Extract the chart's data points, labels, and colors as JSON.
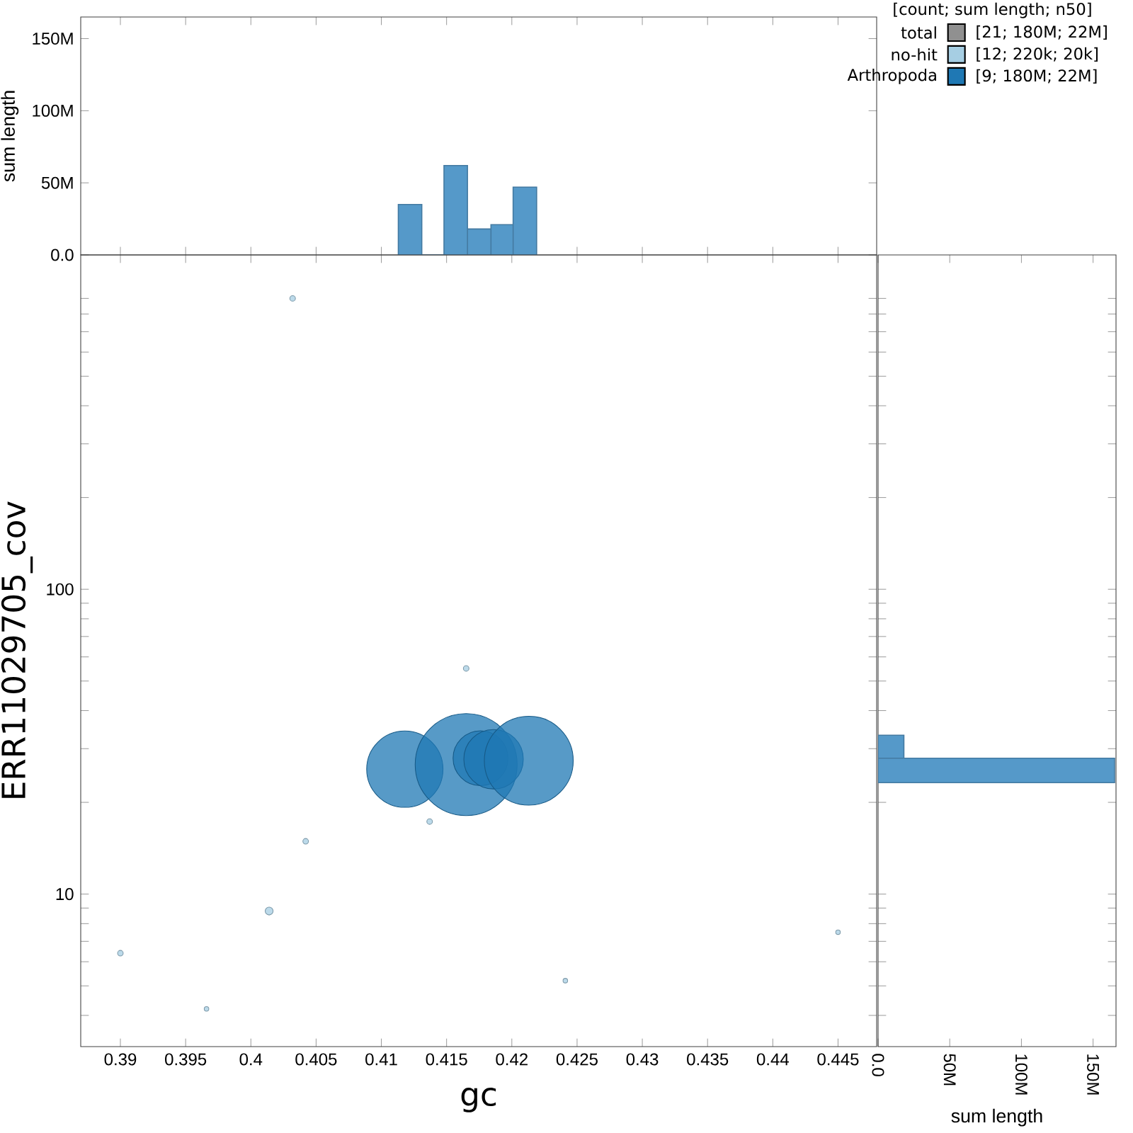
{
  "chart_data": [
    {
      "type": "histogram",
      "bins": [
        0.4113,
        0.4131,
        0.4148,
        0.4166,
        0.4184,
        0.4201,
        0.4219
      ],
      "values": [
        35000000,
        0,
        62000000,
        18000000,
        21000000,
        47000000
      ],
      "color": "#5599c9",
      "ylabel": "sum length",
      "xlim": [
        0.38696,
        0.44796
      ],
      "ylim": [
        0,
        165000000
      ],
      "xticks": [
        0.39,
        0.395,
        0.4,
        0.405,
        0.41,
        0.415,
        0.42,
        0.425,
        0.43,
        0.435,
        0.44,
        0.445
      ],
      "yticks": [
        {
          "value": 0,
          "label": "0.0"
        },
        {
          "value": 50000000,
          "label": "50M"
        },
        {
          "value": 100000000,
          "label": "100M"
        },
        {
          "value": 150000000,
          "label": "150M"
        }
      ],
      "tick_labels": "y"
    },
    {
      "type": "other",
      "legend_title": "[count; sum length; n50]",
      "categories": [
        "total",
        "no-hit",
        "Arthropoda"
      ],
      "colors": [
        "#909090",
        "#a6cee3",
        "#1f78b4"
      ],
      "value_labels": [
        "[21; 180M; 22M]",
        "[12; 220k; 20k]",
        "[9; 180M; 22M]"
      ]
    },
    {
      "type": "bubble",
      "xlabel": "gc",
      "ylabel": "ERR11029705_cov",
      "log": "y",
      "xlim": [
        0.38696,
        0.44796
      ],
      "ylim": [
        3.16,
        1250
      ],
      "xticks": [
        0.39,
        0.395,
        0.4,
        0.405,
        0.41,
        0.415,
        0.42,
        0.425,
        0.43,
        0.435,
        0.44,
        0.445
      ],
      "yticks": [
        {
          "value": 4,
          "label": null
        },
        {
          "value": 5,
          "label": null
        },
        {
          "value": 6,
          "label": null
        },
        {
          "value": 7,
          "label": null
        },
        {
          "value": 8,
          "label": null
        },
        {
          "value": 9,
          "label": null
        },
        10,
        {
          "value": 20,
          "label": null
        },
        {
          "value": 30,
          "label": null
        },
        {
          "value": 40,
          "label": null
        },
        {
          "value": 50,
          "label": null
        },
        {
          "value": 60,
          "label": null
        },
        {
          "value": 70,
          "label": null
        },
        {
          "value": 80,
          "label": null
        },
        {
          "value": 90,
          "label": null
        },
        100,
        {
          "value": 200,
          "label": null
        },
        {
          "value": 300,
          "label": null
        },
        {
          "value": 400,
          "label": null
        },
        {
          "value": 500,
          "label": null
        },
        {
          "value": 600,
          "label": null
        },
        {
          "value": 700,
          "label": null
        },
        {
          "value": 800,
          "label": null
        },
        {
          "value": 900,
          "label": null
        }
      ],
      "series": [
        {
          "color": "#a6cee3",
          "x": [
            0.39,
            0.3966,
            0.4014,
            0.4032,
            0.4042,
            0.4137,
            0.4165,
            0.4241,
            0.445
          ],
          "values": [
            6.4,
            4.2,
            8.8,
            900,
            14.9,
            17.3,
            55,
            5.2,
            7.5
          ],
          "sizes": [
            0.003,
            0.002,
            0.006,
            0.003,
            0.003,
            0.003,
            0.003,
            0.002,
            0.002
          ]
        },
        {
          "color": "#1f78b4",
          "x": [
            0.4118,
            0.4165,
            0.4176,
            0.4186,
            0.4213
          ],
          "values": [
            25.7,
            26.6,
            27.9,
            27.7,
            27.4
          ],
          "sizes": [
            0.56,
            1,
            0.29,
            0.34,
            0.76
          ]
        }
      ]
    },
    {
      "type": "histogram",
      "orientation": "horizontal",
      "log": "y",
      "bins": [
        23.2,
        27.9,
        33.2
      ],
      "values": [
        165000000,
        18000000
      ],
      "color": "#5599c9",
      "xlabel": "sum length",
      "xlim": [
        0,
        166000000
      ],
      "ylim": [
        3.16,
        1250
      ],
      "xticks": [
        {
          "value": 0,
          "label": "0.0"
        },
        {
          "value": 50000000,
          "label": "50M"
        },
        {
          "value": 100000000,
          "label": "100M"
        },
        {
          "value": 150000000,
          "label": "150M"
        }
      ],
      "yticks": [
        {
          "value": 4,
          "label": null
        },
        {
          "value": 5,
          "label": null
        },
        {
          "value": 6,
          "label": null
        },
        {
          "value": 7,
          "label": null
        },
        {
          "value": 8,
          "label": null
        },
        {
          "value": 9,
          "label": null
        },
        {
          "value": 10,
          "label": null
        },
        {
          "value": 20,
          "label": null
        },
        {
          "value": 30,
          "label": null
        },
        {
          "value": 40,
          "label": null
        },
        {
          "value": 50,
          "label": null
        },
        {
          "value": 60,
          "label": null
        },
        {
          "value": 70,
          "label": null
        },
        {
          "value": 80,
          "label": null
        },
        {
          "value": 90,
          "label": null
        },
        {
          "value": 100,
          "label": null
        },
        {
          "value": 200,
          "label": null
        },
        {
          "value": 300,
          "label": null
        },
        {
          "value": 400,
          "label": null
        },
        {
          "value": 500,
          "label": null
        },
        {
          "value": 600,
          "label": null
        },
        {
          "value": 700,
          "label": null
        },
        {
          "value": 800,
          "label": null
        },
        {
          "value": 900,
          "label": null
        }
      ],
      "tick_labels": "x"
    }
  ]
}
